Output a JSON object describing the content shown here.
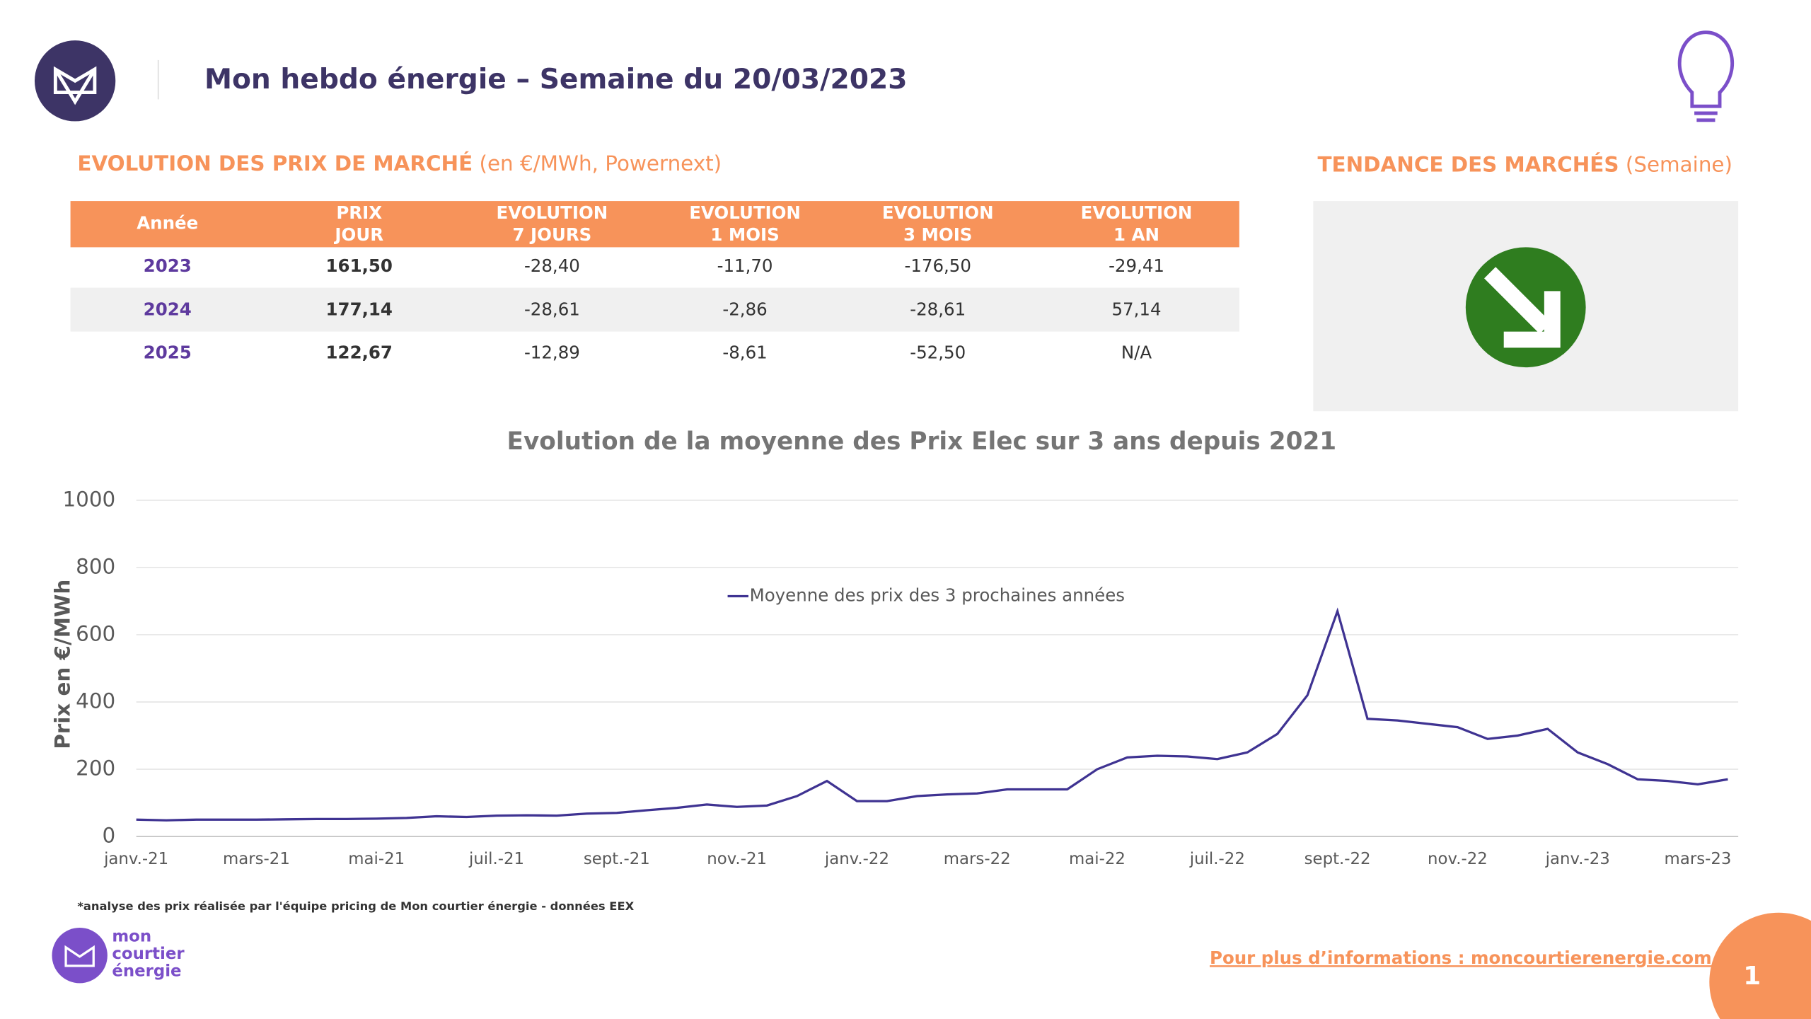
{
  "header": {
    "title": "Mon hebdo énergie – Semaine du 20/03/2023"
  },
  "market": {
    "title": "EVOLUTION DES PRIX DE MARCHÉ",
    "subtitle": "(en €/MWh, Powernext)",
    "table": {
      "columns": [
        [
          "Année"
        ],
        [
          "PRIX",
          "JOUR"
        ],
        [
          "EVOLUTION",
          "7 JOURS"
        ],
        [
          "EVOLUTION",
          "1 MOIS"
        ],
        [
          "EVOLUTION",
          "3 MOIS"
        ],
        [
          "EVOLUTION",
          "1 AN"
        ]
      ],
      "rows": [
        [
          "2023",
          "161,50",
          "-28,40",
          "-11,70",
          "-176,50",
          "-29,41"
        ],
        [
          "2024",
          "177,14",
          "-28,61",
          "-2,86",
          "-28,61",
          "57,14"
        ],
        [
          "2025",
          "122,67",
          "-12,89",
          "-8,61",
          "-52,50",
          "N/A"
        ]
      ]
    }
  },
  "trend": {
    "title": "TENDANCE DES MARCHÉS",
    "subtitle": "(Semaine)"
  },
  "chart_data": {
    "type": "line",
    "title": "Evolution de la moyenne des Prix Elec sur 3 ans depuis 2021",
    "y_label": "Prix en €/MWh",
    "categories": [
      "janv.-21",
      null,
      null,
      null,
      "mars-21",
      null,
      null,
      null,
      "mai-21",
      null,
      null,
      null,
      "juil.-21",
      null,
      null,
      null,
      "sept.-21",
      null,
      null,
      null,
      "nov.-21",
      null,
      null,
      null,
      "janv.-22",
      null,
      null,
      null,
      "mars-22",
      null,
      null,
      null,
      "mai-22",
      null,
      null,
      null,
      "juil.-22",
      null,
      null,
      null,
      "sept.-22",
      null,
      null,
      null,
      "nov.-22",
      null,
      null,
      null,
      "janv.-23",
      null,
      null,
      null,
      "mars-23",
      null
    ],
    "series": [
      {
        "name": "Moyenne des prix des 3 prochaines années",
        "color": "#3f3392",
        "values": [
          50,
          48,
          50,
          50,
          50,
          51,
          52,
          52,
          53,
          55,
          60,
          58,
          62,
          63,
          62,
          68,
          70,
          78,
          85,
          95,
          88,
          92,
          120,
          165,
          105,
          105,
          120,
          125,
          128,
          140,
          140,
          140,
          200,
          235,
          240,
          238,
          230,
          250,
          305,
          420,
          670,
          350,
          345,
          335,
          325,
          290,
          300,
          320,
          250,
          215,
          170,
          165,
          155,
          170
        ]
      }
    ],
    "ylim": [
      0,
      1000
    ],
    "yticks": [
      0,
      200,
      400,
      600,
      800,
      1000
    ],
    "grid": true
  },
  "footer": {
    "note": "*analyse des prix réalisée par l'équipe pricing de Mon courtier énergie -  données EEX",
    "logo": [
      "mon",
      "courtier",
      "énergie"
    ],
    "link": "Pour plus d’informations : moncourtierenergie.com",
    "page": "1"
  }
}
